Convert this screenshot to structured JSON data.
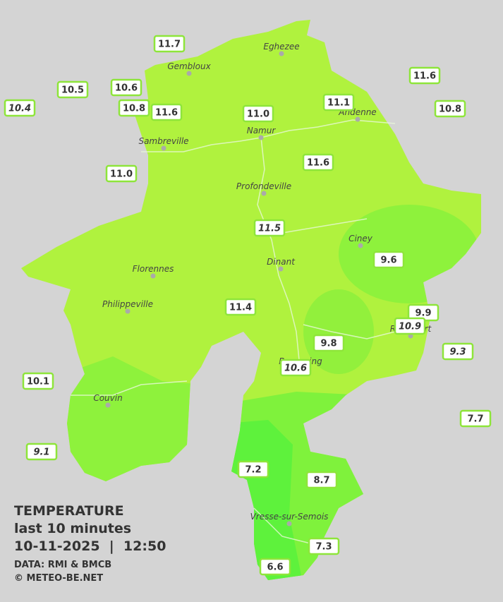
{
  "title": {
    "line1": "TEMPERATURE",
    "line2": "last 10 minutes",
    "line3": "10-11-2025  |  12:50",
    "source": "DATA: RMI & BMCB",
    "credit": "© METEO-BE.NET"
  },
  "towns": [
    {
      "name": "Eghezee"
    },
    {
      "name": "Gembloux"
    },
    {
      "name": "Andenne"
    },
    {
      "name": "Namur"
    },
    {
      "name": "Sambreville"
    },
    {
      "name": "Profondeville"
    },
    {
      "name": "Ciney"
    },
    {
      "name": "Dinant"
    },
    {
      "name": "Florennes"
    },
    {
      "name": "Philippeville"
    },
    {
      "name": "Rochefort"
    },
    {
      "name": "Beauraing"
    },
    {
      "name": "Couvin"
    },
    {
      "name": "Vresse-sur-Semois"
    }
  ],
  "stations": [
    {
      "label": "11.7",
      "italic": false
    },
    {
      "label": "10.5",
      "italic": false
    },
    {
      "label": "10.6",
      "italic": false
    },
    {
      "label": "10.4",
      "italic": true
    },
    {
      "label": "10.8",
      "italic": false
    },
    {
      "label": "11.6",
      "italic": false
    },
    {
      "label": "11.0",
      "italic": false
    },
    {
      "label": "11.1",
      "italic": false
    },
    {
      "label": "11.6",
      "italic": false
    },
    {
      "label": "10.8",
      "italic": false
    },
    {
      "label": "11.0",
      "italic": false
    },
    {
      "label": "11.6",
      "italic": false
    },
    {
      "label": "11.5",
      "italic": true
    },
    {
      "label": "9.6",
      "italic": false
    },
    {
      "label": "11.4",
      "italic": false
    },
    {
      "label": "9.9",
      "italic": false
    },
    {
      "label": "10.9",
      "italic": true
    },
    {
      "label": "9.8",
      "italic": false
    },
    {
      "label": "10.6",
      "italic": true
    },
    {
      "label": "9.3",
      "italic": true
    },
    {
      "label": "10.1",
      "italic": false
    },
    {
      "label": "7.7",
      "italic": false
    },
    {
      "label": "9.1",
      "italic": true
    },
    {
      "label": "7.2",
      "italic": false
    },
    {
      "label": "8.7",
      "italic": false
    },
    {
      "label": "7.3",
      "italic": false
    },
    {
      "label": "6.6",
      "italic": false
    }
  ]
}
